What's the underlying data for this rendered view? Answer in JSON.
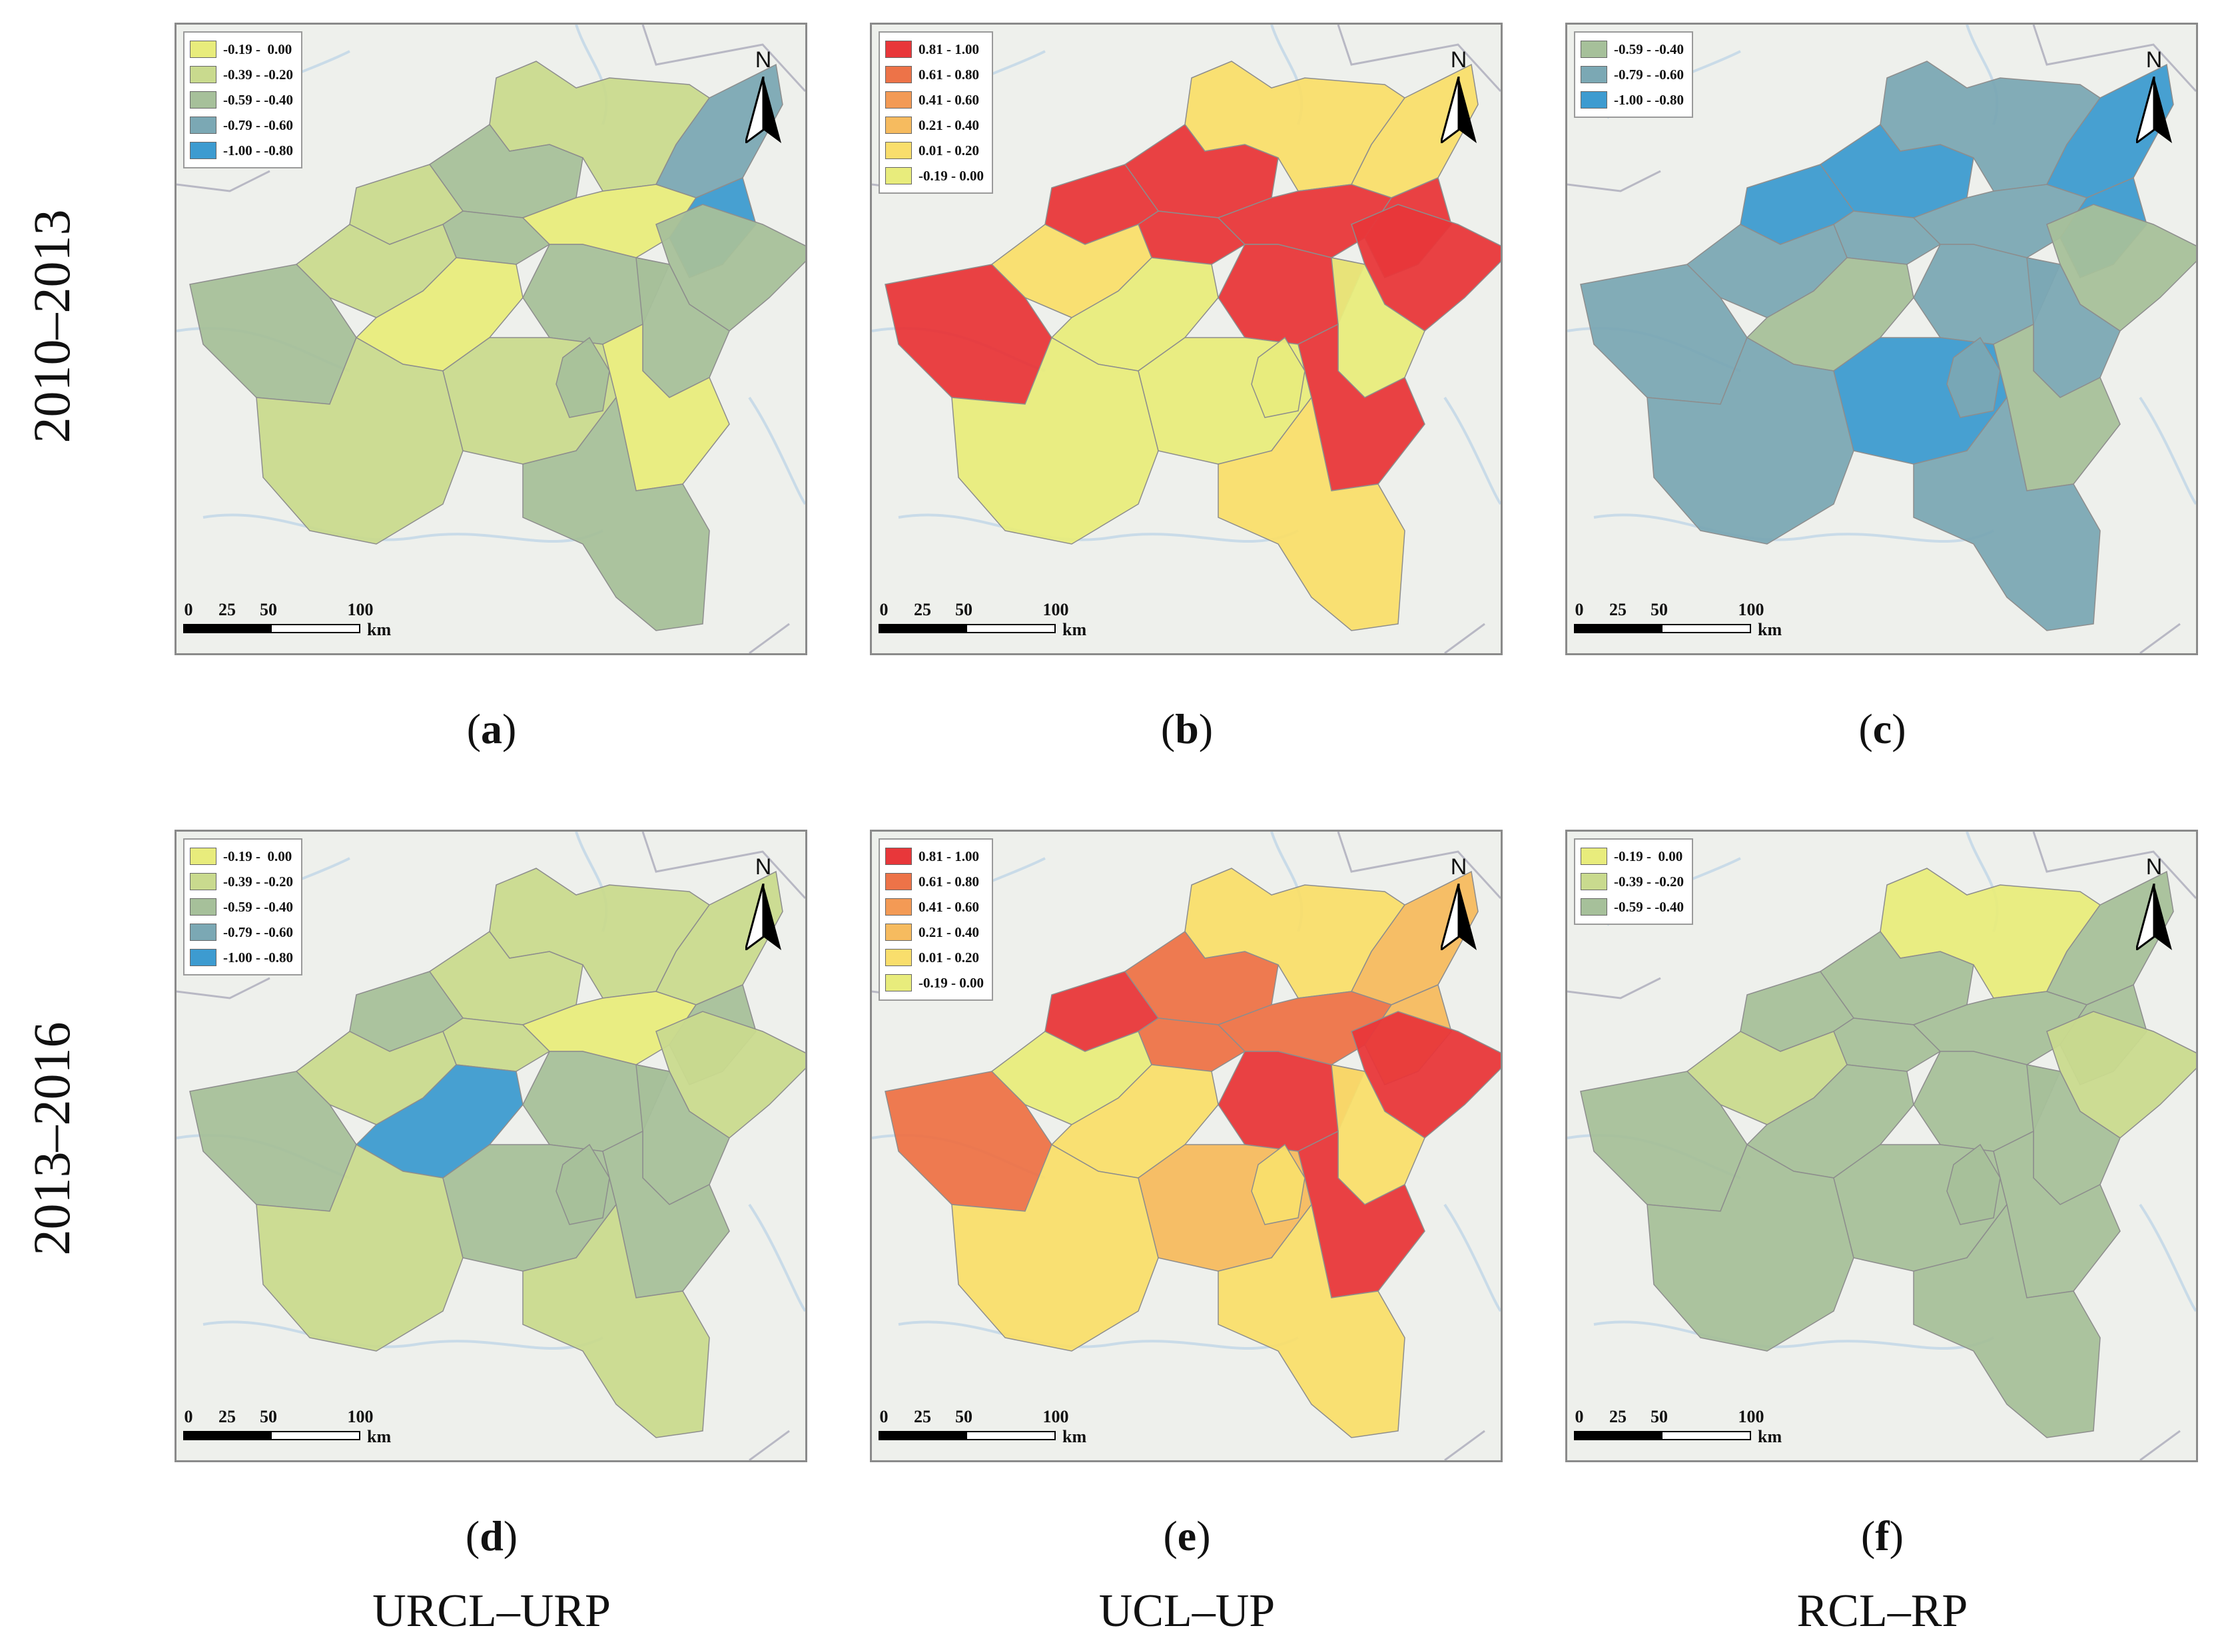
{
  "rows": [
    {
      "label": "2010–2013"
    },
    {
      "label": "2013–2016"
    }
  ],
  "column_titles": [
    "URCL–URP",
    "UCL–UP",
    "RCL–RP"
  ],
  "scale": {
    "ticks": [
      "0",
      "25",
      "50",
      "100"
    ],
    "unit": "km"
  },
  "north_label": "N",
  "colors": {
    "c_neg_0_19": "#e8ec7c",
    "c_neg_0_39": "#c9da8e",
    "c_neg_0_59": "#a6c09a",
    "c_neg_0_79": "#7ba8b4",
    "c_neg_1_00": "#3d9bd0",
    "c_081_100": "#e8373a",
    "c_061_080": "#ed7348",
    "c_041_060": "#f39a55",
    "c_021_040": "#f6bb5f",
    "c_001_020": "#f9de6c",
    "c_neg_0_19_warm": "#e8ec7c",
    "background": "#eef0ec"
  },
  "panels": [
    {
      "caption": "a",
      "legend": [
        {
          "label": "-0.19 -  0.00",
          "color": "#e8ec7c"
        },
        {
          "label": "-0.39 - -0.20",
          "color": "#c9da8e"
        },
        {
          "label": "-0.59 - -0.40",
          "color": "#a6c09a"
        },
        {
          "label": "-0.79 - -0.60",
          "color": "#7ba8b4"
        },
        {
          "label": "-1.00 - -0.80",
          "color": "#3d9bd0"
        }
      ],
      "regions": [
        "#c9da8e",
        "#7ba8b4",
        "#a6c09a",
        "#c9da8e",
        "#a6c09a",
        "#e8ec7c",
        "#3d9bd0",
        "#a6c09a",
        "#c9da8e",
        "#a6c09a",
        "#e8ec7c",
        "#a6c09a",
        "#a6c09a",
        "#c9da8e",
        "#c9da8e",
        "#e8ec7c",
        "#a6c09a",
        "#a6c09a"
      ]
    },
    {
      "caption": "b",
      "legend": [
        {
          "label": "0.81 - 1.00",
          "color": "#e8373a"
        },
        {
          "label": "0.61 - 0.80",
          "color": "#ed7348"
        },
        {
          "label": "0.41 - 0.60",
          "color": "#f39a55"
        },
        {
          "label": "0.21 - 0.40",
          "color": "#f6bb5f"
        },
        {
          "label": "0.01 - 0.20",
          "color": "#f9de6c"
        },
        {
          "label": "-0.19 - 0.00",
          "color": "#e8ec7c"
        }
      ],
      "regions": [
        "#f9de6c",
        "#f9de6c",
        "#e8373a",
        "#e8373a",
        "#e8373a",
        "#e8373a",
        "#e8373a",
        "#e8373a",
        "#f9de6c",
        "#e8373a",
        "#e8ec7c",
        "#e8373a",
        "#e8ec7c",
        "#e8ec7c",
        "#e8ec7c",
        "#e8373a",
        "#f9de6c",
        "#e8ec7c"
      ]
    },
    {
      "caption": "c",
      "legend": [
        {
          "label": "-0.59 - -0.40",
          "color": "#a6c09a"
        },
        {
          "label": "-0.79 - -0.60",
          "color": "#7ba8b4"
        },
        {
          "label": "-1.00 - -0.80",
          "color": "#3d9bd0"
        }
      ],
      "regions": [
        "#7ba8b4",
        "#3d9bd0",
        "#3d9bd0",
        "#3d9bd0",
        "#7ba8b4",
        "#7ba8b4",
        "#3d9bd0",
        "#a6c09a",
        "#7ba8b4",
        "#7ba8b4",
        "#a6c09a",
        "#7ba8b4",
        "#7ba8b4",
        "#7ba8b4",
        "#3d9bd0",
        "#a6c09a",
        "#7ba8b4",
        "#7ba8b4"
      ]
    },
    {
      "caption": "d",
      "legend": [
        {
          "label": "-0.19 -  0.00",
          "color": "#e8ec7c"
        },
        {
          "label": "-0.39 - -0.20",
          "color": "#c9da8e"
        },
        {
          "label": "-0.59 - -0.40",
          "color": "#a6c09a"
        },
        {
          "label": "-0.79 - -0.60",
          "color": "#7ba8b4"
        },
        {
          "label": "-1.00 - -0.80",
          "color": "#3d9bd0"
        }
      ],
      "regions": [
        "#c9da8e",
        "#c9da8e",
        "#c9da8e",
        "#a6c09a",
        "#c9da8e",
        "#e8ec7c",
        "#a6c09a",
        "#c9da8e",
        "#c9da8e",
        "#a6c09a",
        "#3d9bd0",
        "#a6c09a",
        "#a6c09a",
        "#c9da8e",
        "#a6c09a",
        "#a6c09a",
        "#c9da8e",
        "#a6c09a"
      ]
    },
    {
      "caption": "e",
      "legend": [
        {
          "label": "0.81 - 1.00",
          "color": "#e8373a"
        },
        {
          "label": "0.61 - 0.80",
          "color": "#ed7348"
        },
        {
          "label": "0.41 - 0.60",
          "color": "#f39a55"
        },
        {
          "label": "0.21 - 0.40",
          "color": "#f6bb5f"
        },
        {
          "label": "0.01 - 0.20",
          "color": "#f9de6c"
        },
        {
          "label": "-0.19 - 0.00",
          "color": "#e8ec7c"
        }
      ],
      "regions": [
        "#f9de6c",
        "#f6bb5f",
        "#ed7348",
        "#e8373a",
        "#ed7348",
        "#ed7348",
        "#f6bb5f",
        "#e8373a",
        "#e8ec7c",
        "#ed7348",
        "#f9de6c",
        "#e8373a",
        "#f9de6c",
        "#f9de6c",
        "#f6bb5f",
        "#e8373a",
        "#f9de6c",
        "#f9de6c"
      ]
    },
    {
      "caption": "f",
      "legend": [
        {
          "label": "-0.19 -  0.00",
          "color": "#e8ec7c"
        },
        {
          "label": "-0.39 - -0.20",
          "color": "#c9da8e"
        },
        {
          "label": "-0.59 - -0.40",
          "color": "#a6c09a"
        }
      ],
      "regions": [
        "#e8ec7c",
        "#a6c09a",
        "#a6c09a",
        "#a6c09a",
        "#a6c09a",
        "#a6c09a",
        "#a6c09a",
        "#c9da8e",
        "#c9da8e",
        "#a6c09a",
        "#a6c09a",
        "#a6c09a",
        "#a6c09a",
        "#a6c09a",
        "#a6c09a",
        "#a6c09a",
        "#a6c09a",
        "#a6c09a"
      ]
    }
  ]
}
